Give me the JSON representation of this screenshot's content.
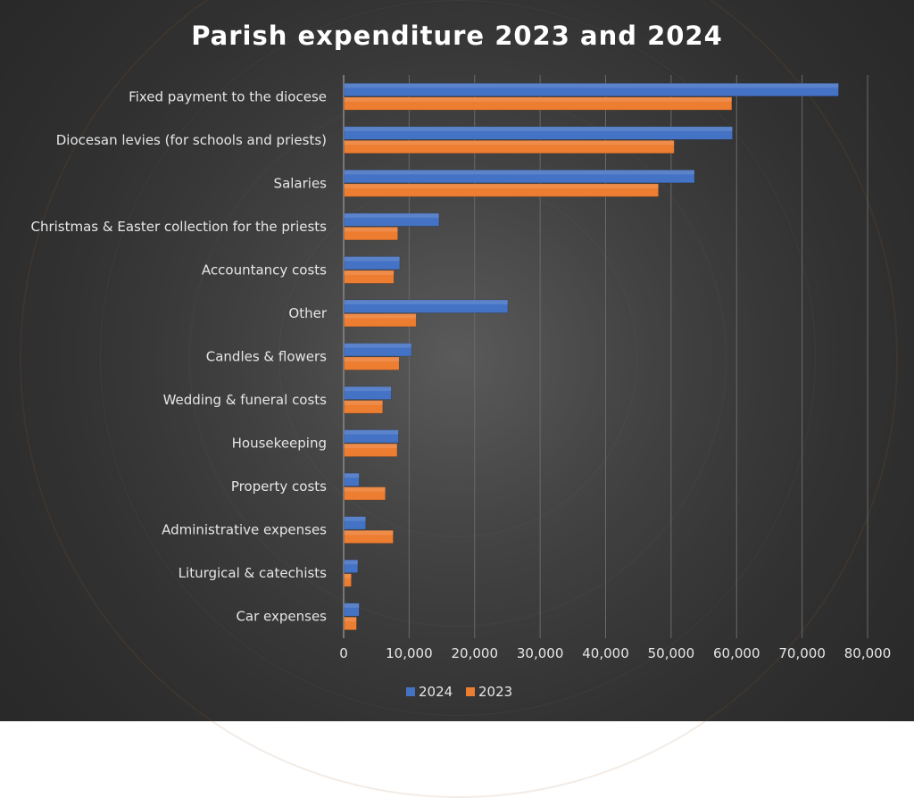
{
  "chart_data": {
    "type": "bar",
    "orientation": "horizontal",
    "title": "Parish expenditure 2023 and 2024",
    "xlabel": "",
    "ylabel": "",
    "xlim": [
      0,
      80000
    ],
    "grid": true,
    "legend_position": "bottom",
    "categories": [
      "Fixed payment to the diocese",
      "Diocesan levies (for schools and priests)",
      "Salaries",
      "Christmas & Easter collection for the priests",
      "Accountancy costs",
      "Other",
      "Candles & flowers",
      "Wedding & funeral costs",
      "Housekeeping",
      "Property costs",
      "Administrative expenses",
      "Liturgical & catechists",
      "Car expenses"
    ],
    "series": [
      {
        "name": "2024",
        "color": "#4472c4",
        "values": [
          75500,
          59300,
          53500,
          14500,
          8500,
          25000,
          10300,
          7200,
          8300,
          2300,
          3300,
          2100,
          2300
        ]
      },
      {
        "name": "2023",
        "color": "#ed7d31",
        "values": [
          59200,
          50400,
          48000,
          8200,
          7600,
          11000,
          8400,
          5900,
          8100,
          6300,
          7500,
          1100,
          1900
        ]
      }
    ],
    "x_ticks": [
      "0",
      "10,000",
      "20,000",
      "30,000",
      "40,000",
      "50,000",
      "60,000",
      "70,000",
      "80,000"
    ]
  }
}
